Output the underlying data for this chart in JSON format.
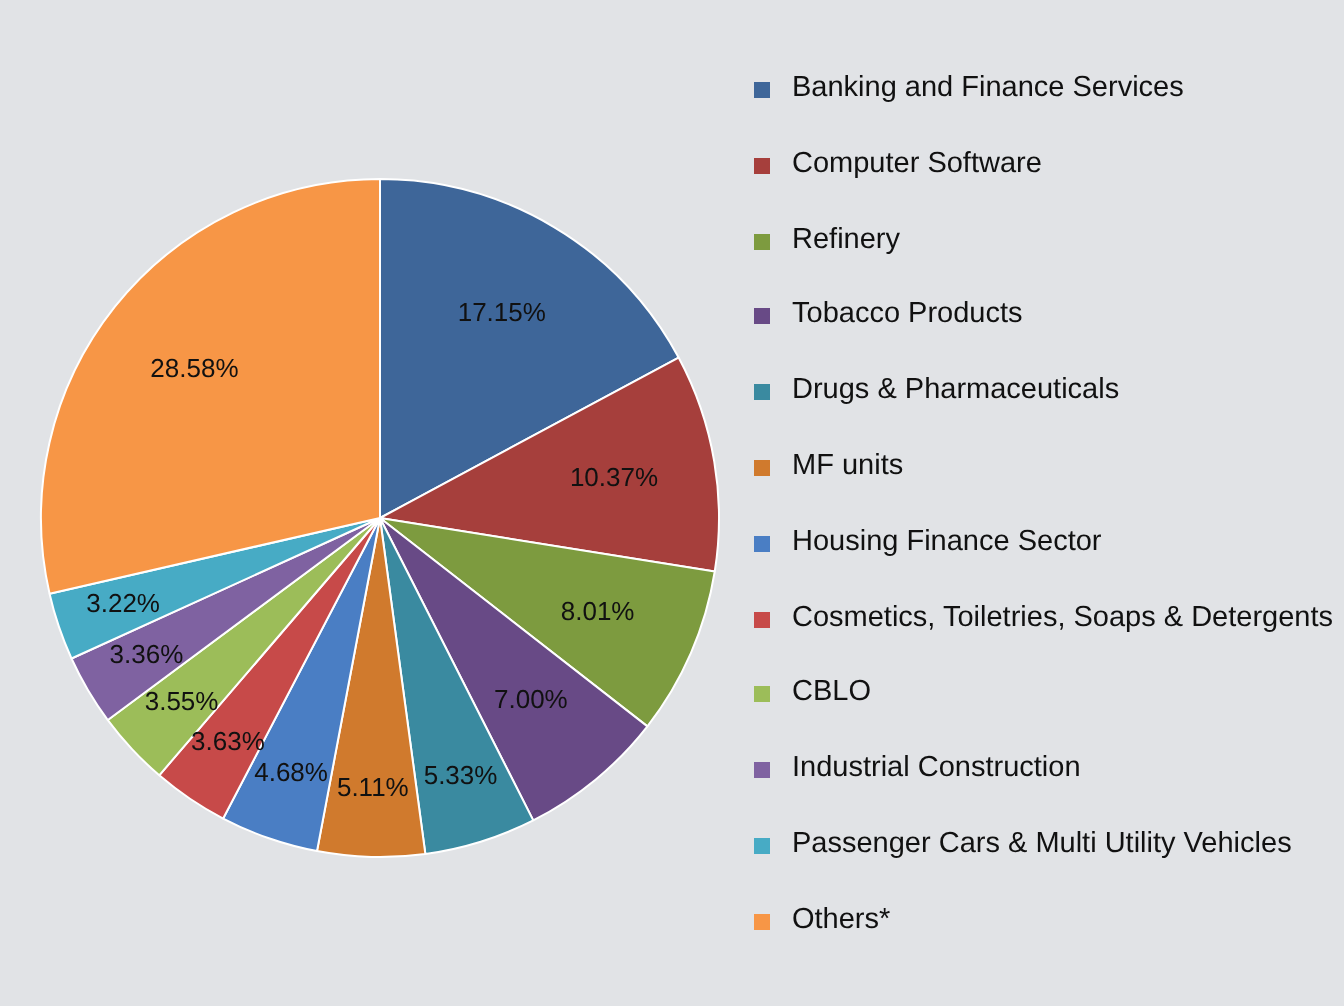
{
  "chart_data": {
    "type": "pie",
    "categories": [
      "Banking and Finance Services",
      "Computer Software",
      "Refinery",
      "Tobacco Products",
      "Drugs & Pharmaceuticals",
      "MF units",
      "Housing Finance Sector",
      "Cosmetics, Toiletries, Soaps & Detergents",
      "CBLO",
      "Industrial Construction",
      "Passenger Cars & Multi Utility Vehicles",
      "Others*"
    ],
    "values": [
      17.15,
      10.37,
      8.01,
      7.0,
      5.33,
      5.11,
      4.68,
      3.63,
      3.55,
      3.36,
      3.22,
      28.58
    ],
    "value_labels": [
      "17.15%",
      "10.37%",
      "8.01%",
      "7.00%",
      "5.33%",
      "5.11%",
      "4.68%",
      "3.63%",
      "3.55%",
      "3.36%",
      "3.22%",
      "28.58%"
    ],
    "colors": [
      "#3e6699",
      "#a63f3c",
      "#7d9b3f",
      "#684a86",
      "#3a8aa0",
      "#d07a2d",
      "#4a7ec4",
      "#c74a49",
      "#9cbd59",
      "#7f62a1",
      "#47abc5",
      "#f79646"
    ],
    "legend": "right"
  }
}
